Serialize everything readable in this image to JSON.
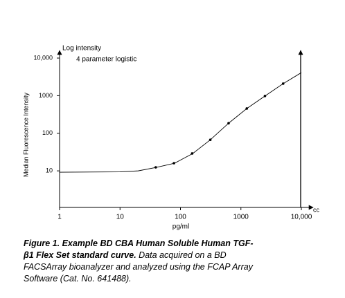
{
  "chart_data": {
    "type": "scatter",
    "annotations": [
      "Log intensity",
      "4 parameter logistic"
    ],
    "y_label": "Median Fluorescence Intensity",
    "x_label": "pg/ml",
    "x_axis_end_label": "cc",
    "xscale": "log",
    "yscale": "log",
    "xlim": [
      1,
      10000
    ],
    "ylim": [
      1,
      10000
    ],
    "xticks": [
      1,
      10,
      100,
      1000,
      {
        "value": 10000,
        "label": "10,000"
      }
    ],
    "yticks": [
      10,
      100,
      1000,
      {
        "value": 10000,
        "label": "10,000"
      }
    ],
    "series": [
      {
        "style": "line",
        "color": "#000000",
        "x": [
          1,
          10,
          20,
          40,
          80,
          160,
          312,
          625,
          1250,
          2500,
          5000,
          10000
        ],
        "values": [
          9.2,
          9.4,
          10,
          12.4,
          16,
          29,
          67,
          185,
          455,
          980,
          2090,
          4100
        ]
      },
      {
        "style": "points",
        "color": "#000000",
        "x": [
          39,
          78,
          156,
          312,
          625,
          1250,
          2500,
          5000
        ],
        "values": [
          12.4,
          16,
          29,
          67,
          185,
          455,
          980,
          2090
        ]
      }
    ]
  },
  "caption": {
    "bold": "Figure 1. Example BD CBA Human Soluble Human TGF-β1 Flex Set standard curve.",
    "text": "Data acquired on a BD FACSArray bioanalyzer and analyzed using the FCAP Array Software (Cat. No. 641488)."
  }
}
